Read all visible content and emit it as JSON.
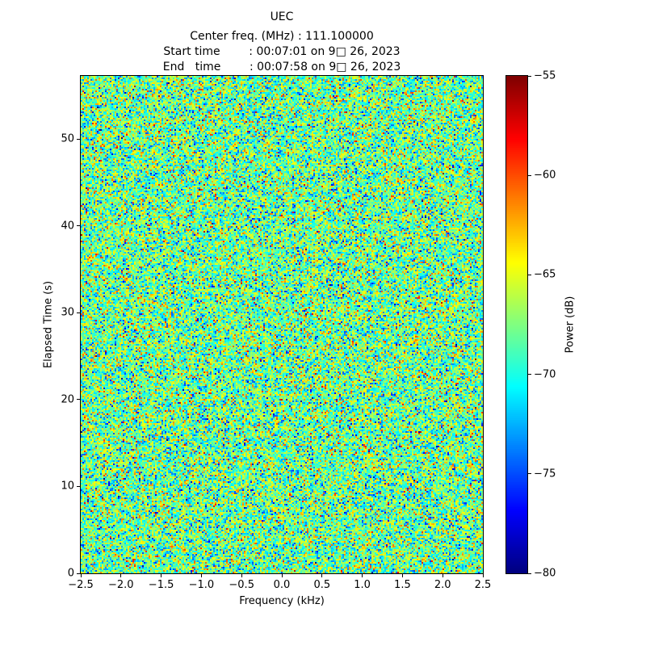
{
  "chart_data": {
    "type": "heatmap",
    "title": "UEC",
    "annotations": [
      "Center freq. (MHz) : 111.100000",
      "Start time        : 00:07:01 on 9□ 26, 2023",
      "End   time        : 00:07:58 on 9□ 26, 2023"
    ],
    "xlabel": "Frequency (kHz)",
    "ylabel": "Elapsed Time (s)",
    "xlim": [
      -2.5,
      2.5
    ],
    "ylim": [
      0,
      57.3
    ],
    "xtick_values": [
      -2.5,
      -2.0,
      -1.5,
      -1.0,
      -0.5,
      0.0,
      0.5,
      1.0,
      1.5,
      2.0,
      2.5
    ],
    "xtick_labels": [
      "−2.5",
      "−2.0",
      "−1.5",
      "−1.0",
      "−0.5",
      "0.0",
      "0.5",
      "1.0",
      "1.5",
      "2.0",
      "2.5"
    ],
    "ytick_values": [
      0,
      10,
      20,
      30,
      40,
      50
    ],
    "ytick_labels": [
      "0",
      "10",
      "20",
      "30",
      "40",
      "50"
    ],
    "grid": false,
    "colorbar": {
      "label": "Power (dB)",
      "min": -80,
      "max": -55,
      "tick_values": [
        -55,
        -60,
        -65,
        -70,
        -75,
        -80
      ],
      "tick_labels": [
        "−55",
        "−60",
        "−65",
        "−70",
        "−75",
        "−80"
      ],
      "colormap": "jet"
    },
    "values": {
      "kind": "gaussian-noise-spectrogram",
      "mean_db": -68,
      "std_db": 3.5,
      "clip_db": [
        -80,
        -55
      ],
      "seed": 20230926,
      "grid": {
        "cols": 249,
        "rows": 308
      }
    }
  }
}
